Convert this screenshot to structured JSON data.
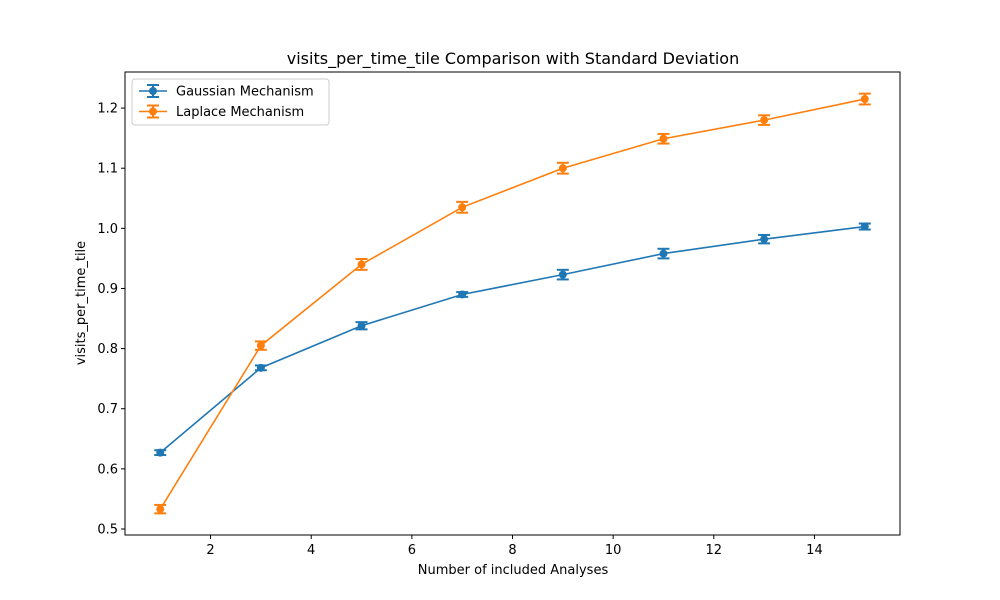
{
  "chart_data": {
    "type": "line",
    "title": "visits_per_time_tile Comparison with Standard Deviation",
    "xlabel": "Number of included Analyses",
    "ylabel": "visits_per_time_tile",
    "xlim": [
      0.3,
      15.7
    ],
    "ylim": [
      0.49,
      1.26
    ],
    "xticks": [
      2,
      4,
      6,
      8,
      10,
      12,
      14
    ],
    "yticks": [
      0.5,
      0.6,
      0.7,
      0.8,
      0.9,
      1.0,
      1.1,
      1.2
    ],
    "ytick_labels": [
      "0.5",
      "0.6",
      "0.7",
      "0.8",
      "0.9",
      "1.0",
      "1.1",
      "1.2"
    ],
    "grid": false,
    "legend_position": "upper-left",
    "x": [
      1,
      3,
      5,
      7,
      9,
      11,
      13,
      15
    ],
    "series": [
      {
        "name": "Gaussian Mechanism",
        "color": "#1f77b4",
        "values": [
          0.627,
          0.768,
          0.838,
          0.89,
          0.923,
          0.958,
          0.982,
          1.003
        ],
        "errors": [
          0.004,
          0.004,
          0.006,
          0.004,
          0.008,
          0.008,
          0.007,
          0.005
        ]
      },
      {
        "name": "Laplace Mechanism",
        "color": "#ff7f0e",
        "values": [
          0.533,
          0.805,
          0.94,
          1.035,
          1.1,
          1.149,
          1.18,
          1.215
        ],
        "errors": [
          0.007,
          0.007,
          0.009,
          0.009,
          0.009,
          0.008,
          0.008,
          0.009
        ]
      }
    ]
  }
}
